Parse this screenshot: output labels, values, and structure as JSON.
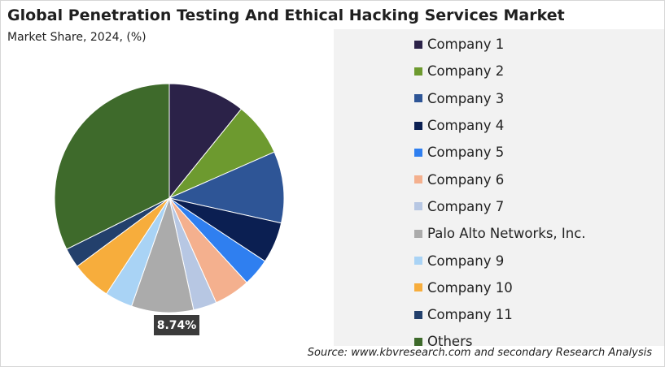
{
  "title": "Global Penetration Testing And Ethical Hacking Services Market",
  "subtitle": "Market Share, 2024, (%)",
  "source": "Source: www.kbvresearch.com and secondary Research Analysis",
  "chart_data": {
    "type": "pie",
    "title": "Global Penetration Testing And Ethical Hacking Services Market",
    "subtitle": "Market Share, 2024, (%)",
    "legend_position": "right",
    "start_angle_deg": 0,
    "direction": "clockwise",
    "slices": [
      {
        "label": "Company 1",
        "value": 10.8,
        "color": "#2b2248"
      },
      {
        "label": "Company 2",
        "value": 7.6,
        "color": "#6d9a2f"
      },
      {
        "label": "Company 3",
        "value": 10.1,
        "color": "#2e5596"
      },
      {
        "label": "Company 4",
        "value": 5.8,
        "color": "#0b1f52"
      },
      {
        "label": "Company 5",
        "value": 3.9,
        "color": "#2f7ff0"
      },
      {
        "label": "Company 6",
        "value": 5.1,
        "color": "#f4b08e"
      },
      {
        "label": "Company 7",
        "value": 3.3,
        "color": "#b7c7e3"
      },
      {
        "label": "Palo Alto Networks, Inc.",
        "value": 8.74,
        "color": "#ababab",
        "data_label": "8.74%"
      },
      {
        "label": "Company 9",
        "value": 3.9,
        "color": "#a9d3f5"
      },
      {
        "label": "Company 10",
        "value": 5.6,
        "color": "#f7ad3c"
      },
      {
        "label": "Company 11",
        "value": 2.8,
        "color": "#23406c"
      },
      {
        "label": "Others",
        "value": 32.36,
        "color": "#3e6a2b"
      }
    ]
  }
}
